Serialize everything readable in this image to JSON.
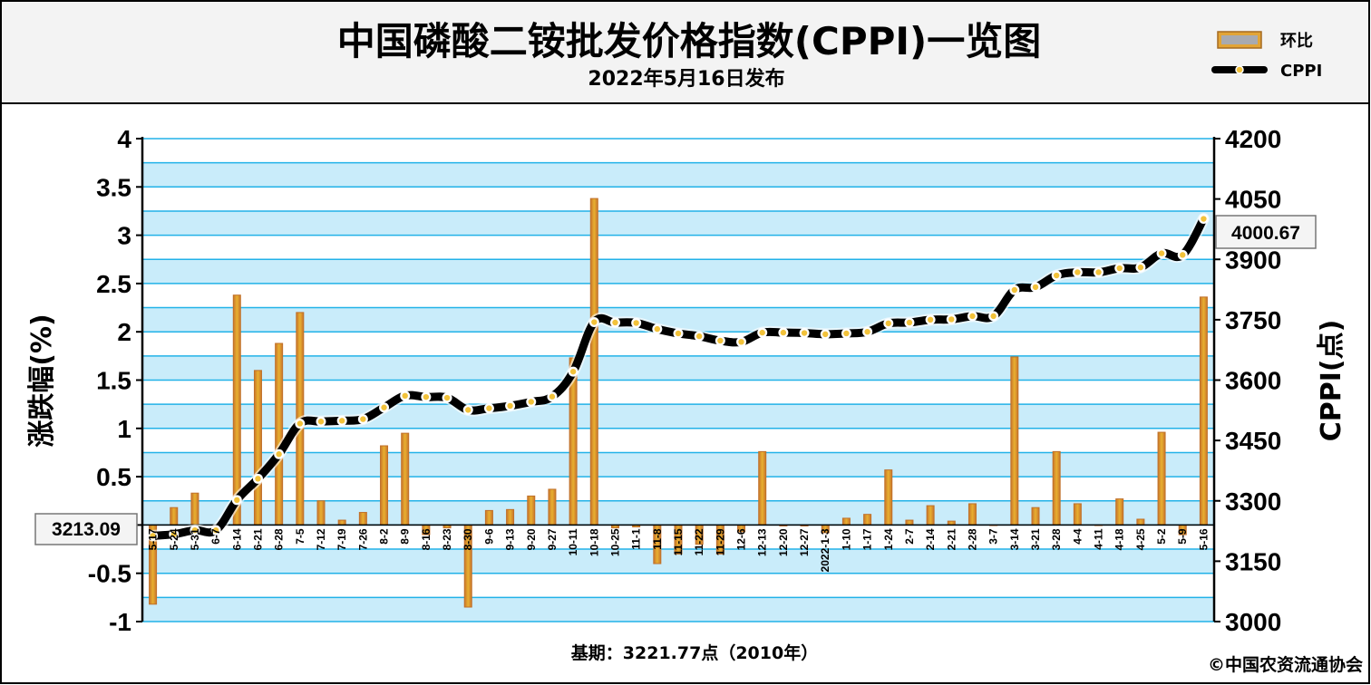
{
  "header": {
    "title": "中国磷酸二铵批发价格指数(CPPI)一览图",
    "subtitle": "2022年5月16日发布"
  },
  "legend": {
    "bar_label": "环比",
    "line_label": "CPPI"
  },
  "footer": {
    "base_note": "基期：3221.77点（2010年）",
    "copyright": "©中国农资流通协会"
  },
  "callouts": {
    "start_value": "3213.09",
    "end_value": "4000.67"
  },
  "colors": {
    "plot_bg_band": "#c9ecfa",
    "plot_bg_alt": "#ffffff",
    "grid": "#22b2e8",
    "bar_gold": "#e8b030",
    "bar_edge": "#c0702a",
    "line": "#000000",
    "marker": "#f2c23a"
  },
  "chart_data": {
    "type": "bar",
    "title": "中国磷酸二铵批发价格指数(CPPI)一览图",
    "subtitle": "2022年5月16日发布",
    "ylabel": "涨跌幅(%)",
    "y2label": "CPPI(点)",
    "ylim": [
      -1,
      4
    ],
    "y2lim": [
      3000,
      4200
    ],
    "yticks": [
      "4",
      "3.5",
      "3",
      "2.5",
      "2",
      "1.5",
      "1",
      "0.5",
      "0",
      "-0.5",
      "-1"
    ],
    "y2ticks": [
      "4200",
      "4050",
      "3900",
      "3750",
      "3600",
      "3450",
      "3300",
      "3150",
      "3000"
    ],
    "grid": true,
    "legend_position": "top-right",
    "categories": [
      "5-17",
      "5-24",
      "5-31",
      "6-7",
      "6-14",
      "6-21",
      "6-28",
      "7-5",
      "7-12",
      "7-19",
      "7-26",
      "8-2",
      "8-9",
      "8-16",
      "8-23",
      "8-30",
      "9-6",
      "9-13",
      "9-20",
      "9-27",
      "10-11",
      "10-18",
      "10-25",
      "11-1",
      "11-8",
      "11-15",
      "11-22",
      "11-29",
      "12-6",
      "12-13",
      "12-20",
      "12-27",
      "2022-1-3",
      "1-10",
      "1-17",
      "1-24",
      "2-7",
      "2-14",
      "2-21",
      "2-28",
      "3-7",
      "3-14",
      "3-21",
      "3-28",
      "4-4",
      "4-11",
      "4-18",
      "4-25",
      "5-2",
      "5-9",
      "5-16"
    ],
    "series": [
      {
        "name": "环比",
        "type": "bar",
        "axis": "left",
        "values": [
          -0.82,
          0.18,
          0.33,
          0.0,
          2.38,
          1.6,
          1.88,
          2.2,
          0.25,
          0.05,
          0.13,
          0.82,
          0.95,
          -0.1,
          -0.03,
          -0.85,
          0.15,
          0.16,
          0.3,
          0.37,
          1.73,
          3.38,
          -0.03,
          -0.02,
          -0.4,
          -0.3,
          -0.2,
          -0.3,
          -0.07,
          0.76,
          -0.01,
          -0.01,
          -0.08,
          0.07,
          0.11,
          0.57,
          0.05,
          0.2,
          0.04,
          0.22,
          0.0,
          1.74,
          0.18,
          0.76,
          0.22,
          0.0,
          0.27,
          0.06,
          0.96,
          -0.1,
          2.36
        ]
      },
      {
        "name": "CPPI",
        "type": "line",
        "axis": "right",
        "values": [
          3213.09,
          3217,
          3227,
          3227,
          3302,
          3355,
          3416,
          3492,
          3497,
          3499,
          3503,
          3532,
          3561,
          3558,
          3556,
          3526,
          3530,
          3536,
          3546,
          3559,
          3621,
          3744,
          3743,
          3742,
          3727,
          3716,
          3709,
          3698,
          3695,
          3718,
          3718,
          3717,
          3714,
          3716,
          3720,
          3741,
          3743,
          3750,
          3751,
          3759,
          3759,
          3824,
          3831,
          3860,
          3868,
          3868,
          3878,
          3880,
          3915,
          3911,
          4000.67
        ]
      }
    ]
  }
}
